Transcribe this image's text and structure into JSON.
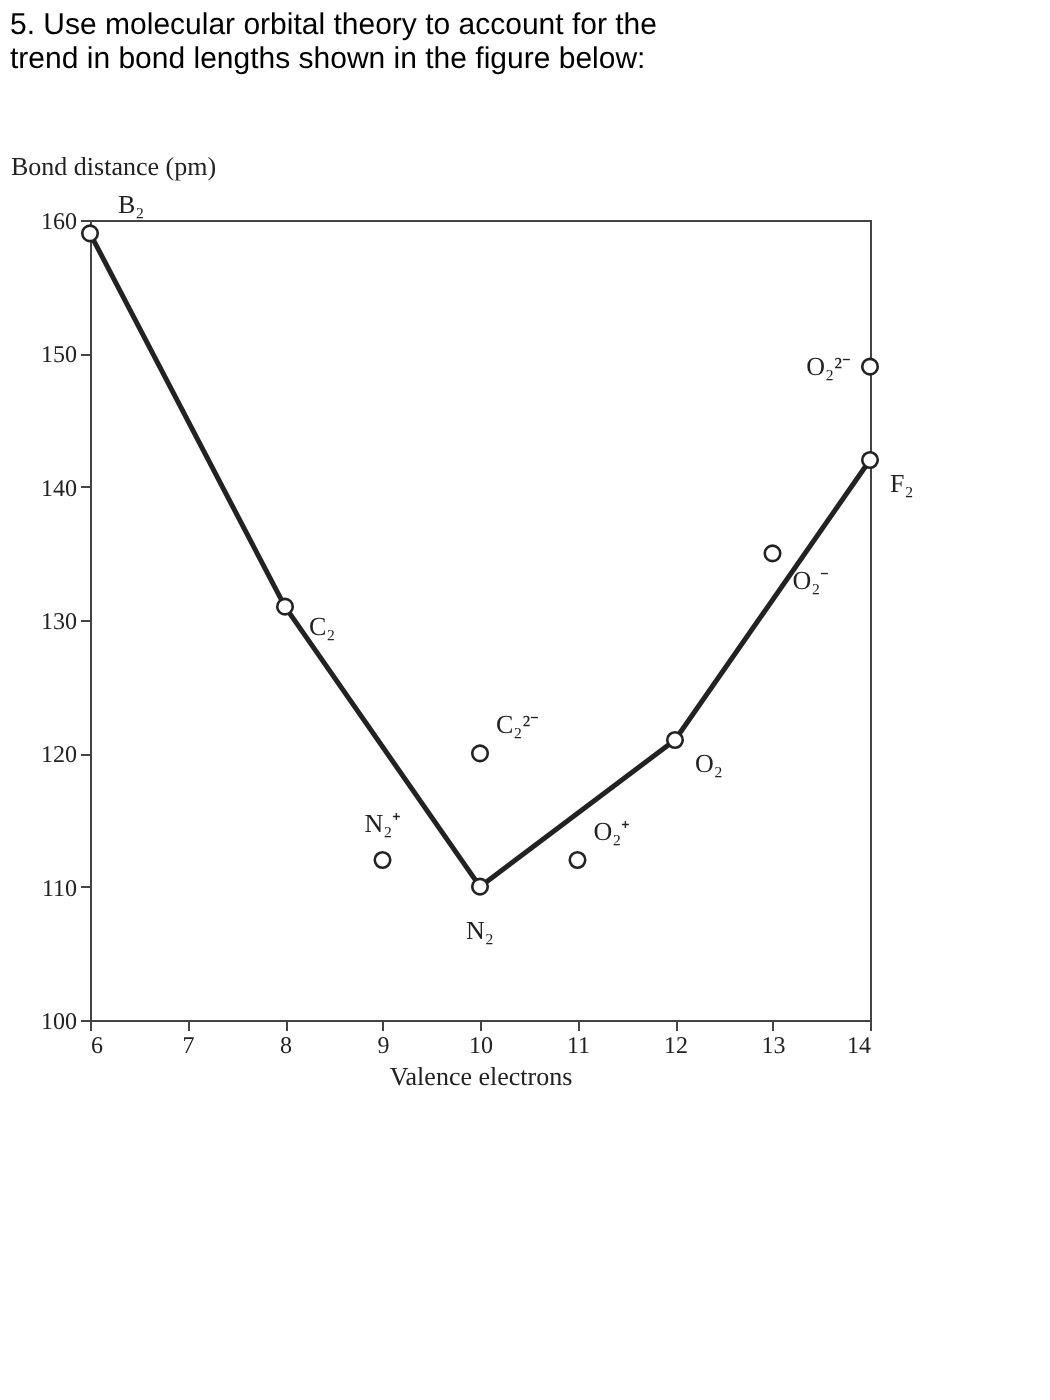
{
  "chart_data": {
    "type": "line",
    "title": "5. Use molecular orbital theory to account for the trend in bond lengths shown in the figure below:",
    "xlabel": "Valence electrons",
    "ylabel": "Bond distance (pm)",
    "series": [
      {
        "color": "#222222",
        "x": [
          6,
          8,
          10,
          12,
          14
        ],
        "values": [
          159,
          131,
          110,
          121,
          142
        ]
      },
      {
        "type": "scatter",
        "color": "#222222",
        "x": [
          9,
          10,
          11,
          13,
          14
        ],
        "values": [
          112,
          120,
          112,
          135,
          149
        ]
      }
    ],
    "annotations": [
      {
        "text": "B₂",
        "x": 6,
        "y": 159
      },
      {
        "text": "C₂",
        "x": 8,
        "y": 131
      },
      {
        "text": "N₂",
        "x": 10,
        "y": 110
      },
      {
        "text": "O₂",
        "x": 12,
        "y": 121
      },
      {
        "text": "F₂",
        "x": 14,
        "y": 142
      },
      {
        "text": "N₂⁺",
        "x": 9,
        "y": 112
      },
      {
        "text": "C₂²⁻",
        "x": 10,
        "y": 120
      },
      {
        "text": "O₂⁺",
        "x": 11,
        "y": 112
      },
      {
        "text": "O₂⁻",
        "x": 13,
        "y": 135
      },
      {
        "text": "O₂²⁻",
        "x": 14,
        "y": 149
      }
    ],
    "xlim": [
      6,
      14
    ],
    "xticks": [
      6,
      7,
      8,
      9,
      10,
      11,
      12,
      13,
      14
    ],
    "ylim": [
      100,
      160
    ],
    "yticks": [
      100,
      110,
      120,
      130,
      140,
      150,
      160
    ],
    "marker": "circle",
    "line_style": "solid",
    "grid": false
  }
}
